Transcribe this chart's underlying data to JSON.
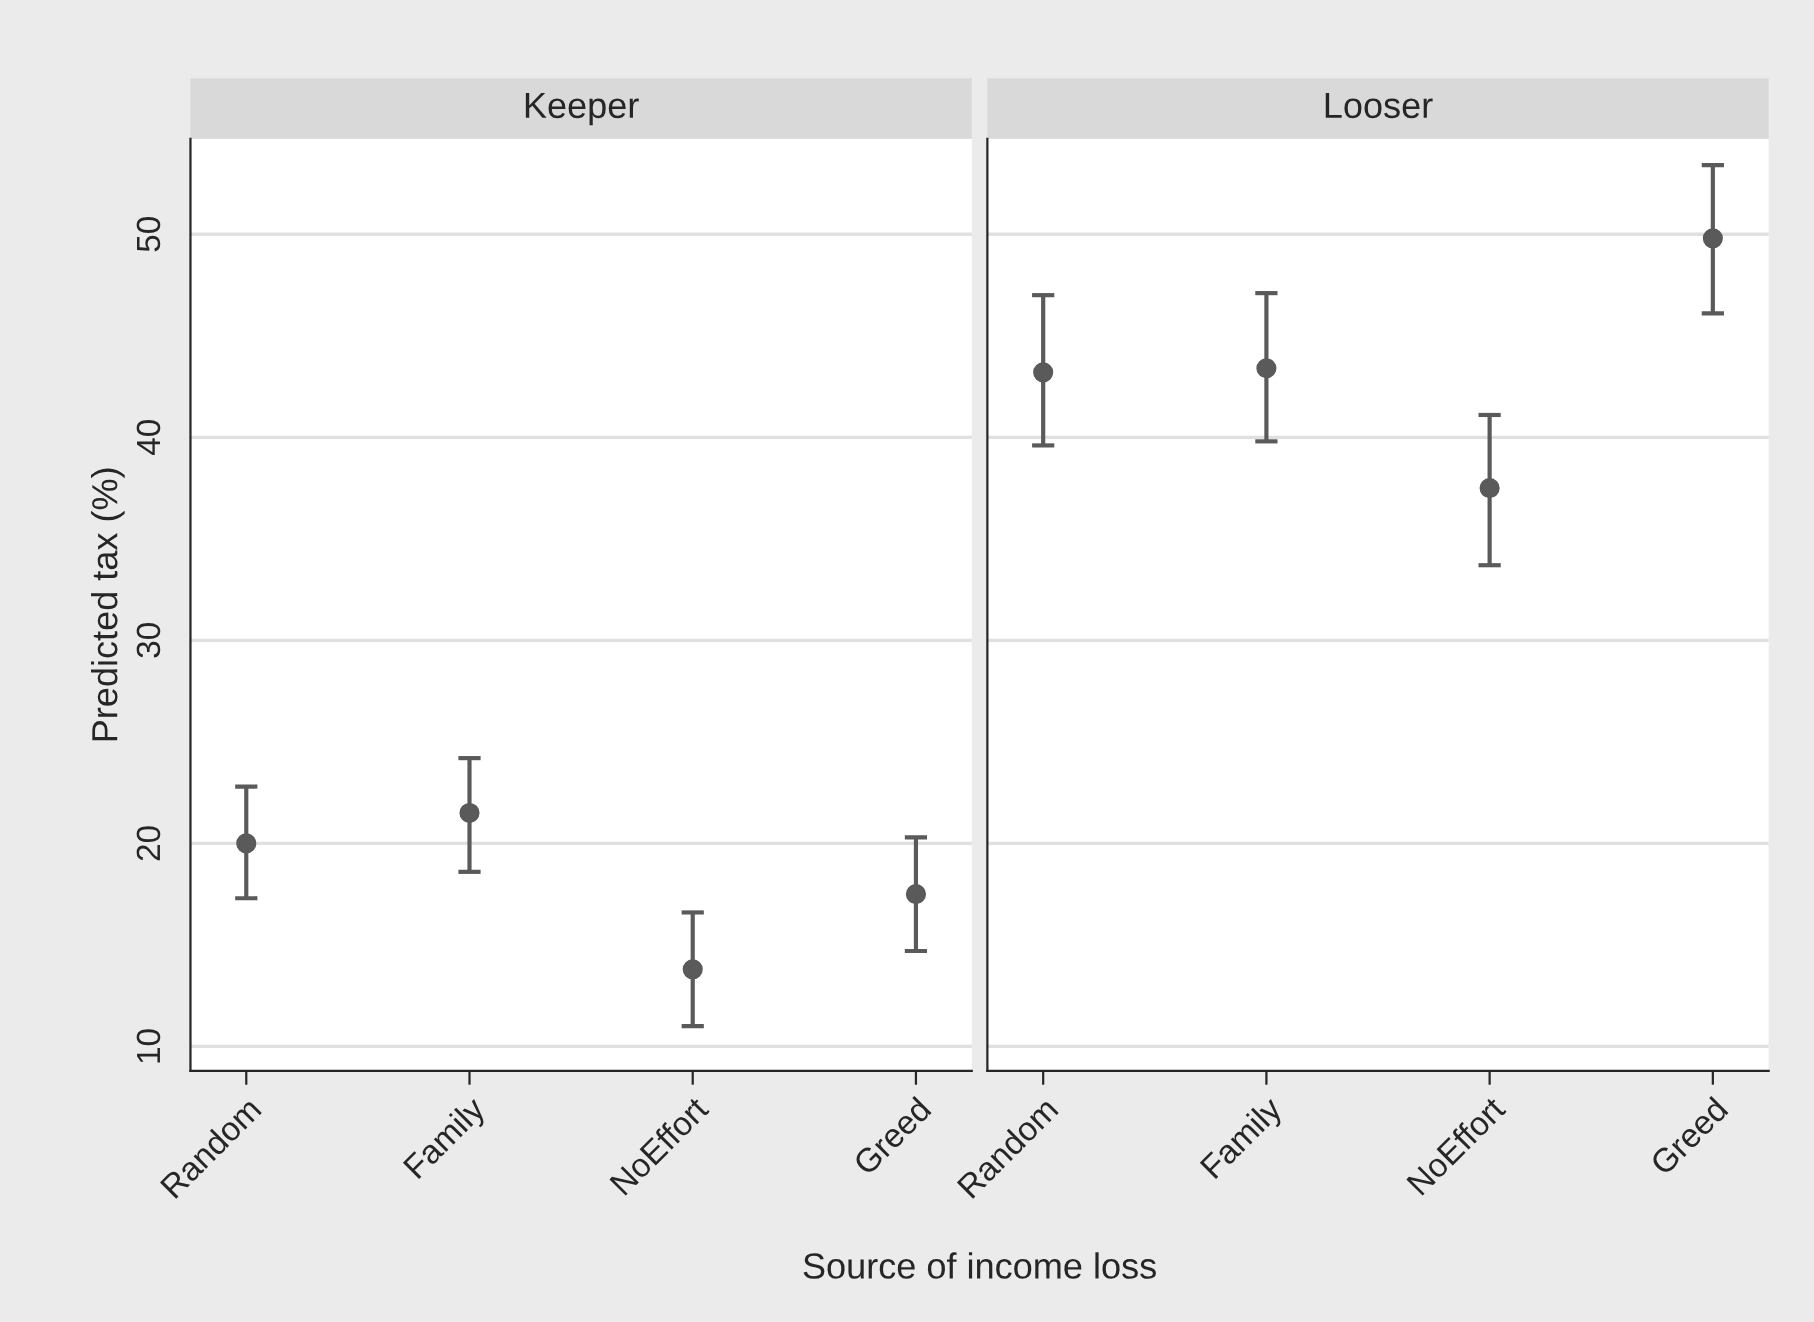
{
  "chart_data": [
    {
      "type": "scatter",
      "title": "Keeper",
      "ylabel": "Predicted tax (%)",
      "xlabel": "Source of income loss",
      "categories": [
        "Random",
        "Family",
        "NoEffort",
        "Greed"
      ],
      "series": [
        {
          "color": "#5a5a5a",
          "values": [
            20.0,
            21.5,
            13.8,
            17.5
          ],
          "errors": [
            [
              17.3,
              22.8
            ],
            [
              18.6,
              24.2
            ],
            [
              11.0,
              16.6
            ],
            [
              14.7,
              20.3
            ]
          ]
        }
      ],
      "ylim": [
        8.8,
        54.7
      ],
      "yticks": [
        10,
        20,
        30,
        40,
        50
      ],
      "grid": "y",
      "marker": "circle"
    },
    {
      "type": "scatter",
      "title": "Looser",
      "categories": [
        "Random",
        "Family",
        "NoEffort",
        "Greed"
      ],
      "series": [
        {
          "color": "#5a5a5a",
          "values": [
            43.2,
            43.4,
            37.5,
            49.8
          ],
          "errors": [
            [
              39.6,
              47.0
            ],
            [
              39.8,
              47.1
            ],
            [
              33.7,
              41.1
            ],
            [
              46.1,
              53.4
            ]
          ]
        }
      ],
      "ylim": [
        8.8,
        54.7
      ],
      "yticks": [
        10,
        20,
        30,
        40,
        50
      ],
      "grid": "y",
      "marker": "circle",
      "tick_labels": "x"
    }
  ]
}
